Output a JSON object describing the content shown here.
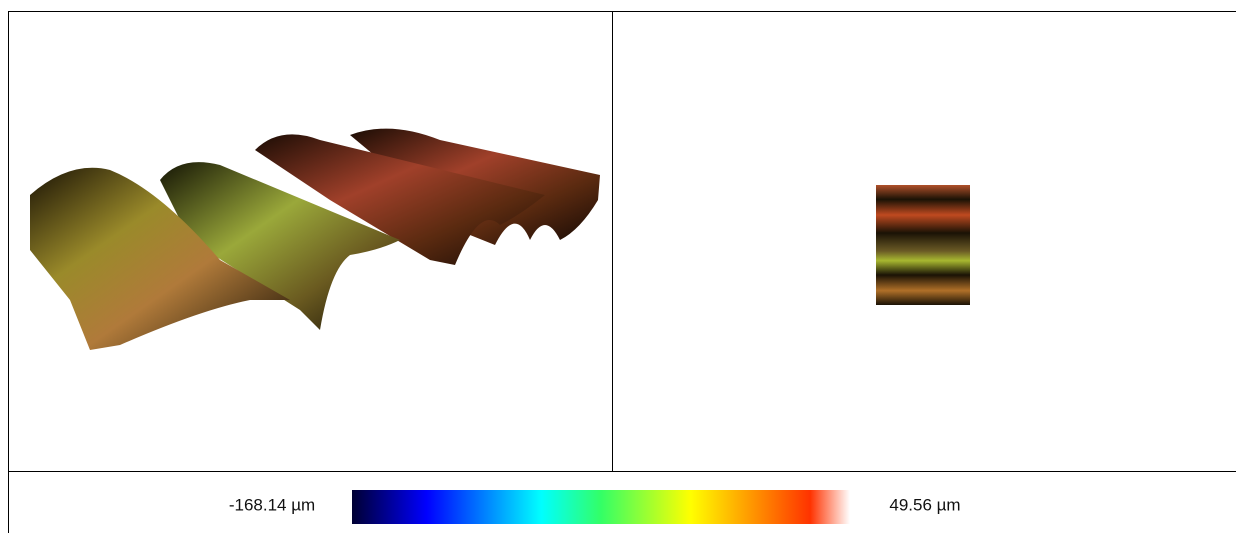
{
  "colorbar": {
    "min_label": "-168.14 µm",
    "max_label": "49.56 µm"
  }
}
